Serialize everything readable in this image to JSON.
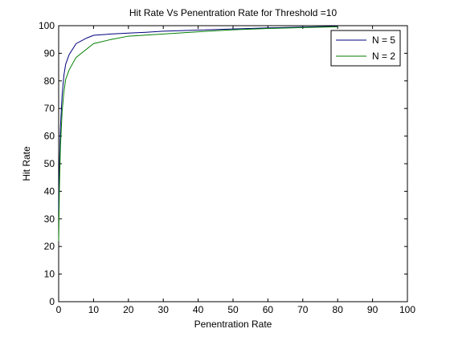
{
  "chart_data": {
    "type": "line",
    "title": "Hit Rate Vs Penentration Rate for Threshold =10",
    "xlabel": "Penentration Rate",
    "ylabel": "Hit Rate",
    "xlim": [
      0,
      100
    ],
    "ylim": [
      0,
      100
    ],
    "xticks": [
      0,
      10,
      20,
      30,
      40,
      50,
      60,
      70,
      80,
      90,
      100
    ],
    "yticks": [
      0,
      10,
      20,
      30,
      40,
      50,
      60,
      70,
      80,
      90,
      100
    ],
    "grid": false,
    "legend_position": "top-right",
    "series": [
      {
        "name": "N = 5",
        "color": "#00007f",
        "x": [
          0,
          0.2,
          0.5,
          1,
          1.5,
          2,
          3,
          5,
          8,
          10,
          15,
          20,
          25,
          30,
          40,
          50,
          60,
          70,
          80
        ],
        "y": [
          33,
          48,
          63,
          75,
          82,
          86,
          89.5,
          93.5,
          95.5,
          96.5,
          97,
          97.3,
          97.6,
          98,
          98.4,
          98.8,
          99.2,
          99.5,
          99.8
        ]
      },
      {
        "name": "N = 2",
        "color": "#007f00",
        "x": [
          0,
          0.2,
          0.5,
          1,
          1.5,
          2,
          3,
          5,
          8,
          10,
          15,
          20,
          25,
          30,
          40,
          50,
          60,
          70,
          80
        ],
        "y": [
          22,
          40,
          56,
          69,
          76,
          80.5,
          84,
          88.5,
          91.5,
          93.5,
          95,
          96.2,
          96.6,
          97,
          97.8,
          98.5,
          99,
          99.3,
          99.6
        ]
      }
    ]
  }
}
